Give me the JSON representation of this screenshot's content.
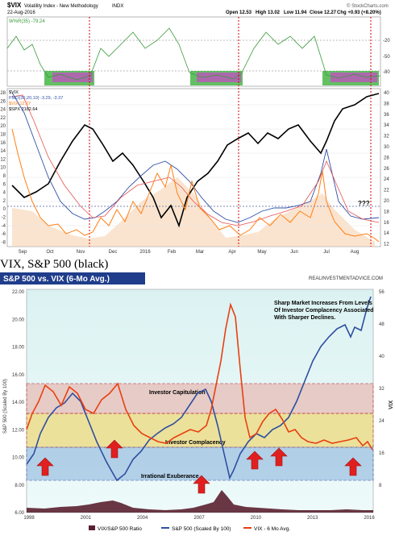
{
  "top_chart": {
    "title": "$VIX",
    "subtitle": "Volatility Index - New Methodology",
    "exchange": "INDX",
    "date": "22-Aug-2016",
    "copyright": "© StockCharts.com",
    "quote": {
      "open": "Open 12.53",
      "high": "High 13.02",
      "low": "Low 11.94",
      "close": "Close 12.27",
      "chg": "Chg +0.93 (+8.20%)"
    },
    "indicator_label": "W%R(35) -79.24",
    "legend": [
      "$VIX",
      "PMO(35,20,10) -3.29, -3.37",
      "$VIX 12.27",
      "$SPX 2182.64"
    ],
    "annotation": "???"
  },
  "separator_text": "VIX, S&P 500 (black)",
  "bottom_chart": {
    "title": "S&P 500 vs. VIX (6-Mo Avg.)",
    "brand": "REALINVESTMENTADVICE.COM",
    "annotation": "Sharp Market Increases From Levels Of Investor Complacency Associated With Sharper Declines.",
    "zone_labels": [
      "Investor Capitulation",
      "Investor Complacency",
      "Irrational Exuberance"
    ],
    "ylabel_left": "S&P 500 (Scaled By 100)",
    "ylabel_right": "VIX",
    "legend": [
      "VIX/S&P 500 Ratio",
      "S&P 500 (Scaled By 100)",
      "VIX - 6 Mo Avg."
    ]
  },
  "colors": {
    "green": "#3a9a3a",
    "magenta": "#cc44cc",
    "red": "#e84010",
    "blue": "#2f4f9f",
    "black": "#000000"
  },
  "chart_data": [
    {
      "type": "line",
      "title": "$VIX Volatility Index - New Methodology",
      "x_ticks": [
        "Sep",
        "Oct",
        "Nov",
        "Dec",
        "2016",
        "Feb",
        "Mar",
        "Apr",
        "May",
        "Jun",
        "Jul",
        "Aug"
      ],
      "y_ticks_left": [
        28,
        26,
        24,
        22,
        20,
        18,
        16,
        14,
        12,
        10,
        8,
        6,
        4,
        2,
        0,
        -2,
        -4,
        -6,
        -8
      ],
      "y_ticks_right": [
        40,
        38,
        36,
        34,
        32,
        30,
        28,
        26,
        24,
        22,
        20,
        18,
        16,
        14,
        12
      ],
      "indicator_ticks": [
        -20,
        -50,
        -80
      ],
      "series": [
        {
          "name": "$VIX",
          "values": [
            40,
            26,
            18,
            20,
            22,
            27,
            22,
            20,
            16,
            16,
            14,
            12,
            20,
            13,
            12
          ]
        },
        {
          "name": "$SPX",
          "values": [
            1900,
            1930,
            2080,
            2050,
            2010,
            1880,
            1850,
            2000,
            2070,
            2060,
            2090,
            2000,
            2130,
            2180,
            2180
          ]
        }
      ],
      "ylim": [
        -8,
        29
      ]
    },
    {
      "type": "line",
      "title": "S&P 500 vs. VIX (6-Mo Avg.)",
      "x": [
        1998,
        1999,
        2000,
        2001,
        2002,
        2003,
        2004,
        2005,
        2006,
        2007,
        2008,
        2009,
        2010,
        2011,
        2012,
        2013,
        2014,
        2015,
        2016
      ],
      "x_ticks": [
        "1998",
        "2001",
        "2004",
        "2007",
        "2010",
        "2013",
        "2016"
      ],
      "y_ticks_left": [
        "22.00",
        "20.00",
        "18.00",
        "16.00",
        "14.00",
        "12.00",
        "10.00",
        "8.00",
        "6.00"
      ],
      "y_ticks_right": [
        56,
        48,
        40,
        32,
        24,
        16,
        8
      ],
      "series": [
        {
          "name": "S&P 500 (Scaled By 100)",
          "values": [
            10.0,
            12.5,
            14.5,
            12.5,
            10.0,
            8.5,
            11.0,
            12.0,
            13.0,
            15.0,
            12.0,
            8.0,
            11.0,
            12.5,
            13.5,
            16.5,
            19.0,
            20.5,
            21.5
          ]
        },
        {
          "name": "VIX - 6 Mo Avg.",
          "values": [
            24,
            22,
            24,
            26,
            30,
            20,
            15,
            13,
            12,
            17,
            30,
            42,
            20,
            22,
            17,
            14,
            13,
            15,
            14
          ]
        },
        {
          "name": "VIX/S&P 500 Ratio",
          "values": [
            1.5,
            1.6,
            1.7,
            2.0,
            2.5,
            1.8,
            1.2,
            1.0,
            0.9,
            1.2,
            2.5,
            5.0,
            1.5,
            1.5,
            1.0,
            0.8,
            0.7,
            0.8,
            0.8
          ]
        }
      ],
      "zones": [
        "Investor Capitulation",
        "Investor Complacency",
        "Irrational Exuberance"
      ],
      "ylim": [
        6,
        22
      ]
    }
  ]
}
